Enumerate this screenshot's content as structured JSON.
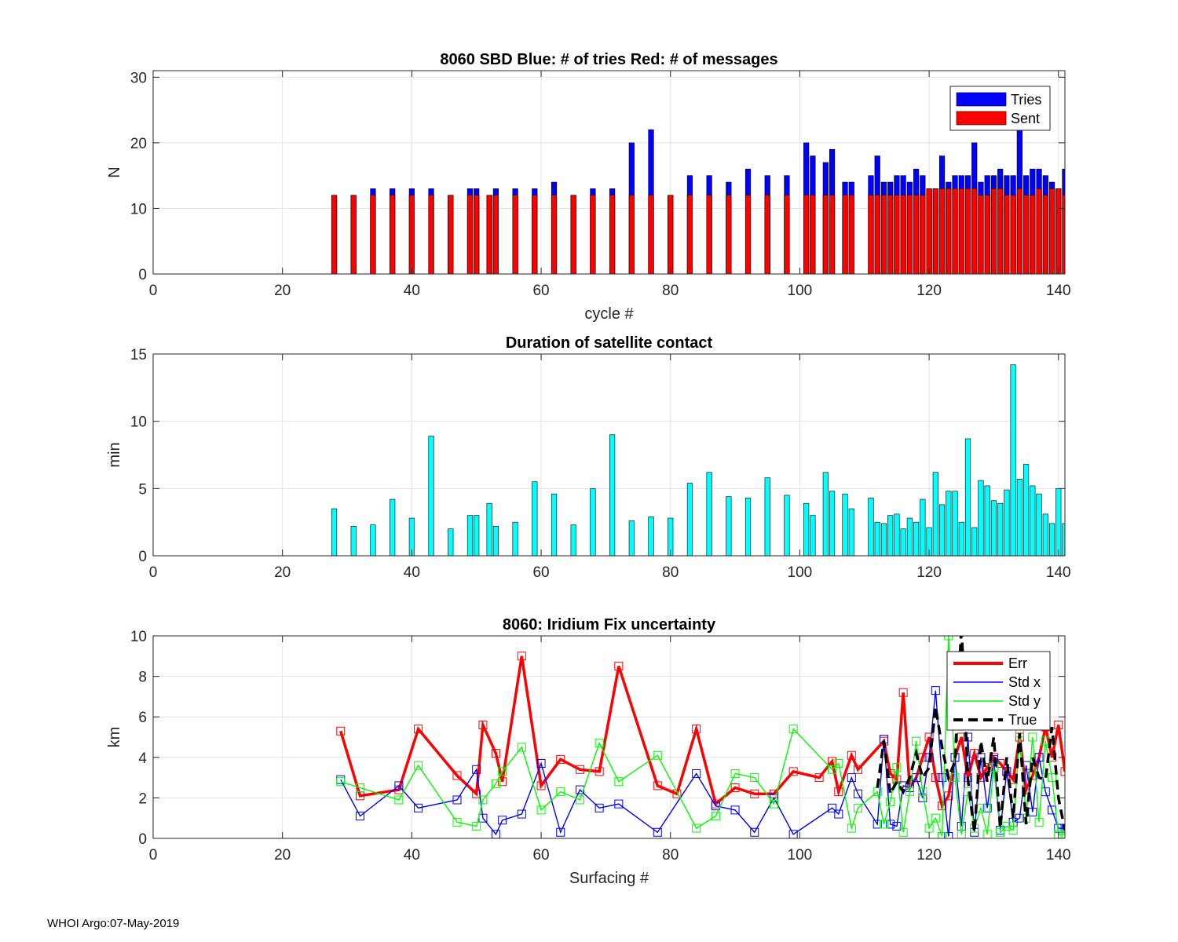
{
  "footer": "WHOI Argo:07-May-2019",
  "chart_data": [
    {
      "type": "bar",
      "title": "8060 SBD  Blue: # of tries   Red: # of messages",
      "xlabel": "cycle #",
      "ylabel": "N",
      "xlim": [
        0,
        141
      ],
      "ylim": [
        0,
        31
      ],
      "xticks": [
        0,
        20,
        40,
        60,
        80,
        100,
        120,
        140
      ],
      "yticks": [
        0,
        10,
        20,
        30
      ],
      "grid": true,
      "legend": {
        "position": "top-right",
        "entries": [
          "Tries",
          "Sent"
        ]
      },
      "series": [
        {
          "name": "Tries",
          "color": "#0000ff",
          "x": [
            28,
            31,
            34,
            37,
            40,
            43,
            46,
            49,
            50,
            52,
            53,
            56,
            59,
            62,
            65,
            68,
            71,
            74,
            77,
            80,
            83,
            86,
            89,
            92,
            95,
            98,
            101,
            102,
            104,
            105,
            107,
            108,
            111,
            112,
            113,
            114,
            115,
            116,
            117,
            118,
            119,
            120,
            121,
            122,
            123,
            124,
            125,
            126,
            127,
            128,
            129,
            130,
            131,
            132,
            133,
            134,
            135,
            136,
            137,
            138,
            139,
            140,
            141
          ],
          "values": [
            12,
            12,
            13,
            13,
            13,
            13,
            12,
            13,
            13,
            12,
            13,
            13,
            13,
            14,
            12,
            13,
            13,
            20,
            22,
            12,
            15,
            15,
            14,
            16,
            15,
            15,
            20,
            18,
            17,
            19,
            14,
            14,
            15,
            18,
            14,
            14,
            15,
            15,
            14,
            16,
            15,
            13,
            13,
            18,
            14,
            15,
            15,
            15,
            20,
            14,
            15,
            15,
            16,
            15,
            15,
            24,
            15,
            16,
            16,
            15,
            14,
            13,
            16
          ]
        },
        {
          "name": "Sent",
          "color": "#ff0000",
          "x": [
            28,
            31,
            34,
            37,
            40,
            43,
            46,
            49,
            50,
            52,
            53,
            56,
            59,
            62,
            65,
            68,
            71,
            74,
            77,
            80,
            83,
            86,
            89,
            92,
            95,
            98,
            101,
            102,
            104,
            105,
            107,
            108,
            111,
            112,
            113,
            114,
            115,
            116,
            117,
            118,
            119,
            120,
            121,
            122,
            123,
            124,
            125,
            126,
            127,
            128,
            129,
            130,
            131,
            132,
            133,
            134,
            135,
            136,
            137,
            138,
            139,
            140,
            141
          ],
          "values": [
            12,
            12,
            12,
            12,
            12,
            12,
            12,
            12,
            12,
            12,
            12,
            12,
            12,
            12,
            12,
            12,
            12,
            12,
            12,
            12,
            12,
            12,
            12,
            12,
            12,
            12,
            12,
            12,
            12,
            12,
            12,
            12,
            12,
            12,
            12,
            12,
            12,
            12,
            12,
            12,
            12,
            13,
            13,
            13,
            13,
            13,
            13,
            13,
            13,
            12,
            12,
            13,
            13,
            12,
            12,
            13,
            12,
            12,
            13,
            12,
            13,
            13,
            12
          ]
        }
      ]
    },
    {
      "type": "bar",
      "title": "Duration of satellite contact",
      "xlabel": "",
      "ylabel": "min",
      "xlim": [
        0,
        141
      ],
      "ylim": [
        0,
        15
      ],
      "xticks": [
        0,
        20,
        40,
        60,
        80,
        100,
        120,
        140
      ],
      "yticks": [
        0,
        5,
        10,
        15
      ],
      "grid": true,
      "series": [
        {
          "name": "Duration",
          "color": "#00ffff",
          "x": [
            28,
            31,
            34,
            37,
            40,
            43,
            46,
            49,
            50,
            52,
            53,
            56,
            59,
            62,
            65,
            68,
            71,
            74,
            77,
            80,
            83,
            86,
            89,
            92,
            95,
            98,
            101,
            102,
            104,
            105,
            107,
            108,
            111,
            112,
            113,
            114,
            115,
            116,
            117,
            118,
            119,
            120,
            121,
            122,
            123,
            124,
            125,
            126,
            127,
            128,
            129,
            130,
            131,
            132,
            133,
            134,
            135,
            136,
            137,
            138,
            139,
            140,
            141
          ],
          "values": [
            3.5,
            2.2,
            2.3,
            4.2,
            2.8,
            8.9,
            2.0,
            3.0,
            3.0,
            3.9,
            2.2,
            2.5,
            5.5,
            4.6,
            2.3,
            5.0,
            9.0,
            2.6,
            2.9,
            2.8,
            5.4,
            6.2,
            4.4,
            4.3,
            5.8,
            4.5,
            3.9,
            3.0,
            6.2,
            4.8,
            4.6,
            3.5,
            4.3,
            2.5,
            2.4,
            3.0,
            3.1,
            2.0,
            2.8,
            2.5,
            4.2,
            2.1,
            6.2,
            3.8,
            4.8,
            4.8,
            2.5,
            8.7,
            2.1,
            5.6,
            5.2,
            4.1,
            3.9,
            4.9,
            14.2,
            5.7,
            6.8,
            5.2,
            4.6,
            3.1,
            2.4,
            5.0,
            2.4
          ]
        }
      ]
    },
    {
      "type": "line",
      "title": "8060: Iridium Fix uncertainty",
      "xlabel": "Surfacing #",
      "ylabel": "km",
      "xlim": [
        0,
        141
      ],
      "ylim": [
        0,
        10
      ],
      "xticks": [
        0,
        20,
        40,
        60,
        80,
        100,
        120,
        140
      ],
      "yticks": [
        0,
        2,
        4,
        6,
        8,
        10
      ],
      "grid": true,
      "legend": {
        "position": "top-right",
        "entries": [
          "Err",
          "Std x",
          "Std y",
          "True"
        ]
      },
      "series": [
        {
          "name": "Err",
          "color": "#ff0000",
          "x": [
            29,
            32,
            38,
            41,
            47,
            50,
            51,
            53,
            54,
            57,
            60,
            63,
            66,
            69,
            72,
            78,
            81,
            84,
            87,
            90,
            93,
            96,
            99,
            103,
            105,
            106,
            108,
            109,
            113,
            114,
            115,
            116,
            117,
            118,
            119,
            120,
            121,
            122,
            123,
            124,
            125,
            126,
            127,
            128,
            129,
            130,
            131,
            132,
            133,
            134,
            135,
            136,
            137,
            138,
            139,
            140,
            141
          ],
          "y": [
            5.3,
            2.1,
            2.4,
            5.4,
            3.1,
            2.2,
            5.6,
            4.2,
            2.8,
            9.0,
            2.6,
            3.9,
            3.4,
            3.3,
            8.5,
            2.6,
            2.2,
            5.4,
            1.7,
            2.5,
            2.2,
            2.2,
            3.3,
            3.0,
            3.8,
            2.3,
            4.1,
            3.4,
            4.8,
            3.2,
            2.9,
            7.2,
            2.5,
            3.0,
            4.0,
            5.0,
            3.0,
            1.6,
            2.1,
            4.0,
            5.0,
            3.0,
            4.2,
            3.0,
            3.5,
            4.0,
            3.7,
            3.3,
            2.9,
            5.0,
            2.4,
            3.1,
            4.0,
            5.5,
            4.0,
            5.6,
            3.3
          ]
        },
        {
          "name": "Std x",
          "color": "#0000ff",
          "x": [
            29,
            32,
            38,
            41,
            47,
            50,
            51,
            53,
            54,
            57,
            60,
            63,
            66,
            69,
            72,
            78,
            84,
            87,
            90,
            93,
            96,
            99,
            105,
            106,
            108,
            109,
            112,
            113,
            114,
            115,
            116,
            117,
            118,
            119,
            120,
            121,
            122,
            123,
            124,
            125,
            126,
            127,
            128,
            129,
            130,
            131,
            132,
            133,
            134,
            135,
            136,
            137,
            138,
            139,
            140,
            141
          ],
          "y": [
            2.9,
            1.1,
            2.6,
            1.5,
            1.9,
            3.4,
            1.0,
            0.2,
            0.9,
            1.2,
            3.7,
            0.3,
            2.4,
            1.5,
            1.7,
            0.3,
            3.2,
            1.6,
            1.4,
            0.3,
            2.0,
            0.2,
            1.5,
            1.2,
            3.0,
            2.2,
            0.7,
            4.9,
            0.7,
            0.6,
            2.6,
            2.5,
            3.0,
            2.0,
            4.0,
            7.3,
            3.0,
            0.1,
            4.0,
            0.6,
            5.0,
            0.3,
            4.0,
            1.5,
            3.9,
            0.4,
            3.3,
            0.8,
            1.0,
            3.6,
            1.3,
            4.0,
            2.3,
            1.4,
            0.5,
            0.5
          ]
        },
        {
          "name": "Std y",
          "color": "#00ff00",
          "x": [
            29,
            32,
            38,
            41,
            47,
            50,
            51,
            53,
            54,
            57,
            60,
            63,
            66,
            69,
            72,
            78,
            84,
            87,
            90,
            93,
            96,
            99,
            105,
            106,
            108,
            109,
            112,
            113,
            114,
            115,
            116,
            117,
            118,
            119,
            120,
            121,
            122,
            123,
            124,
            125,
            126,
            127,
            128,
            129,
            130,
            131,
            132,
            133,
            134,
            135,
            136,
            137,
            138,
            139,
            140,
            141
          ],
          "y": [
            2.8,
            2.5,
            1.9,
            3.6,
            0.8,
            0.6,
            1.9,
            2.7,
            3.3,
            4.5,
            1.4,
            2.3,
            1.9,
            4.7,
            2.8,
            4.1,
            0.5,
            1.1,
            3.2,
            3.0,
            1.7,
            5.4,
            3.4,
            3.7,
            0.5,
            1.5,
            2.3,
            0.7,
            1.8,
            3.5,
            0.3,
            2.3,
            4.8,
            2.3,
            0.5,
            1.0,
            0.1,
            10.0,
            3.0,
            0.2,
            2.3,
            0.5,
            1.5,
            0.2,
            3.5,
            0.3,
            0.6,
            0.4,
            5.2,
            1.0,
            5.0,
            0.8,
            4.8,
            3.0,
            0.2,
            0.2
          ]
        },
        {
          "name": "True",
          "color": "#000000",
          "x": [
            112,
            113,
            114,
            115,
            116,
            117,
            118,
            119,
            120,
            121,
            122,
            123,
            124,
            125,
            126,
            127,
            128,
            129,
            130,
            131,
            132,
            133,
            134,
            135,
            136,
            137,
            138,
            139,
            140,
            141
          ],
          "y": [
            2.5,
            4.8,
            2.2,
            2.8,
            2.3,
            3.0,
            4.2,
            3.0,
            3.5,
            6.5,
            4.5,
            3.0,
            3.8,
            10.5,
            2.9,
            0.3,
            4.8,
            2.8,
            5.0,
            0.5,
            4.0,
            1.0,
            5.2,
            0.7,
            4.0,
            3.0,
            2.9,
            5.5,
            2.0,
            0.4
          ]
        }
      ]
    }
  ]
}
